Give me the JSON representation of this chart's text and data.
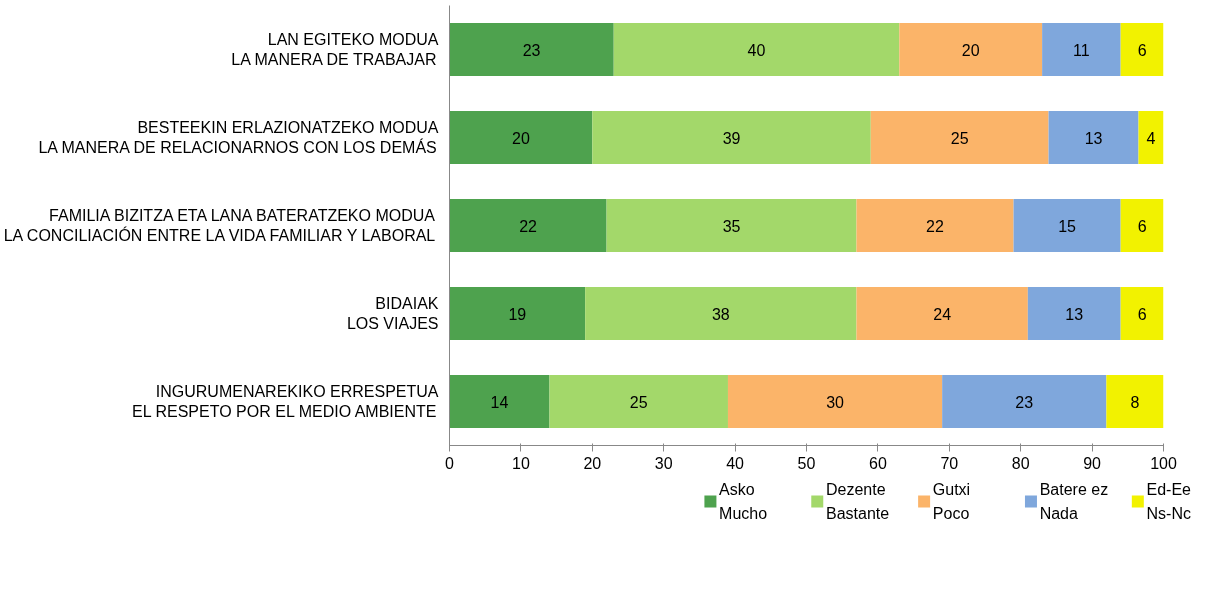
{
  "chart_data": {
    "type": "bar",
    "orientation": "horizontal",
    "stacked": true,
    "grid": false,
    "legend": "bottom",
    "categories": [
      "LAN EGITEKO MODUA\nLA MANERA DE TRABAJAR",
      "BESTEEKIN ERLAZIONATZEKO MODUA\nLA MANERA DE RELACIONARNOS CON LOS DEMÁS",
      "FAMILIA BIZITZA ETA LANA BATERATZEKO MODUA\nLA CONCILIACIÓN ENTRE LA VIDA FAMILIAR Y LABORAL",
      "BIDAIAK\nLOS VIAJES",
      "INGURUMENAREKIKO ERRESPETUA\nEL RESPETO POR EL MEDIO AMBIENTE"
    ],
    "series": [
      {
        "name": "Asko\nMucho",
        "color": "#4ea24e",
        "values": [
          23,
          20,
          22,
          19,
          14
        ],
        "value_labels": [
          "23",
          "20",
          "22",
          "19",
          "14"
        ]
      },
      {
        "name": "Dezente\nBastante",
        "color": "#a3d86a",
        "values": [
          40,
          39,
          35,
          38,
          25
        ],
        "value_labels": [
          "40",
          "39",
          "35",
          "38",
          "25"
        ]
      },
      {
        "name": "Gutxi\nPoco",
        "color": "#fbb469",
        "values": [
          20,
          24.9,
          22,
          24,
          30
        ],
        "value_labels": [
          "20",
          "25",
          "22",
          "24",
          "30"
        ]
      },
      {
        "name": "Batere ez\nNada",
        "color": "#7fa7dc",
        "values": [
          11,
          12.6,
          15,
          13,
          23
        ],
        "value_labels": [
          "11",
          "13",
          "15",
          "13",
          "23"
        ]
      },
      {
        "name": "Ed-Ee\nNs-Nc",
        "color": "#f2f200",
        "values": [
          6,
          3.5,
          6,
          6,
          8
        ],
        "value_labels": [
          "6",
          "4",
          "6",
          "6",
          "8"
        ]
      }
    ],
    "xlim": [
      0,
      100
    ],
    "xticks": [
      0,
      10,
      20,
      30,
      40,
      50,
      60,
      70,
      80,
      90,
      100
    ]
  }
}
